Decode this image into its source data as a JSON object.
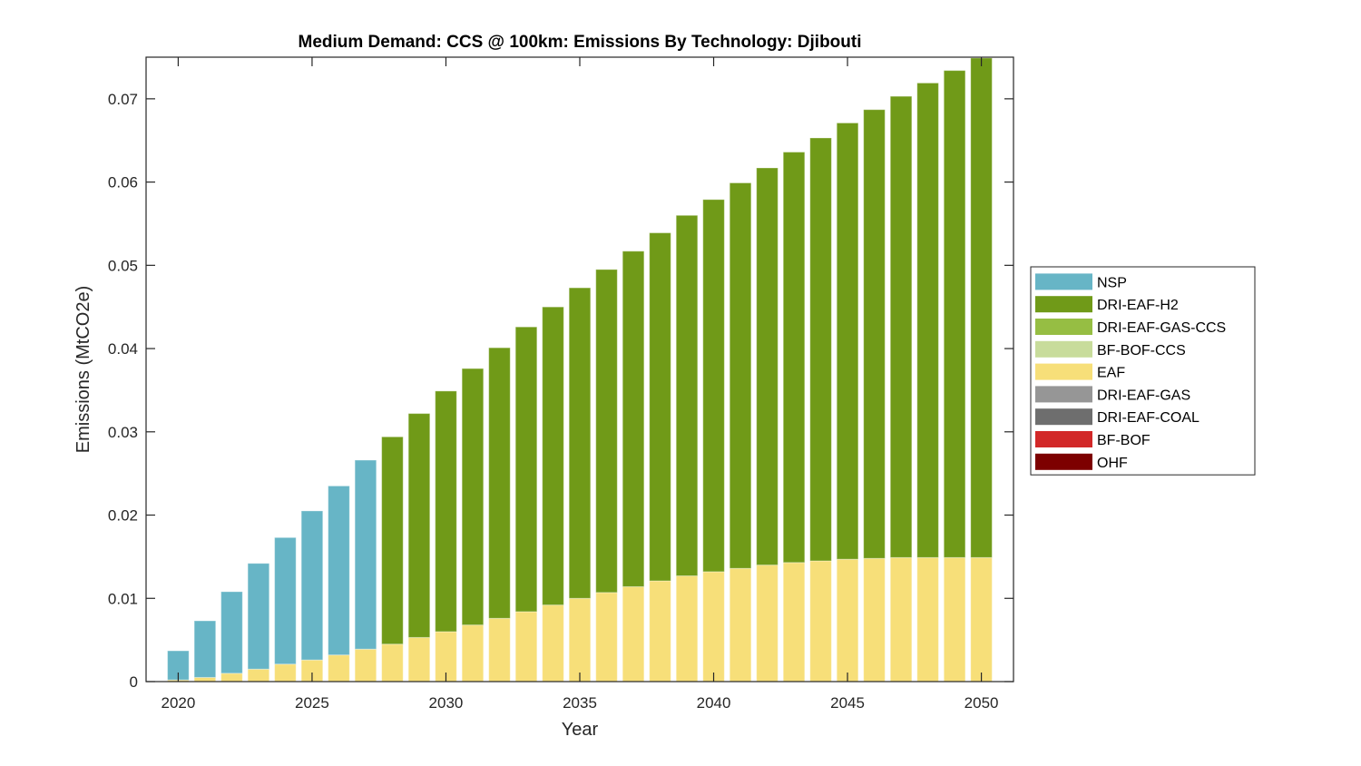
{
  "chart_data": {
    "type": "bar",
    "stacked": true,
    "title": "Medium Demand: CCS @ 100km: Emissions By Technology: Djibouti",
    "xlabel": "Year",
    "ylabel": "Emissions (MtCO2e)",
    "xlim": [
      2018.8,
      2051.2
    ],
    "ylim": [
      0,
      0.075
    ],
    "xticks": [
      2020,
      2025,
      2030,
      2035,
      2040,
      2045,
      2050
    ],
    "xtick_labels": [
      "2020",
      "2025",
      "2030",
      "2035",
      "2040",
      "2045",
      "2050"
    ],
    "yticks": [
      0,
      0.01,
      0.02,
      0.03,
      0.04,
      0.05,
      0.06,
      0.07
    ],
    "ytick_labels": [
      "0",
      "0.01",
      "0.02",
      "0.03",
      "0.04",
      "0.05",
      "0.06",
      "0.07"
    ],
    "grid": false,
    "legend_position": "right-outside",
    "categories": [
      2020,
      2021,
      2022,
      2023,
      2024,
      2025,
      2026,
      2027,
      2028,
      2029,
      2030,
      2031,
      2032,
      2033,
      2034,
      2035,
      2036,
      2037,
      2038,
      2039,
      2040,
      2041,
      2042,
      2043,
      2044,
      2045,
      2046,
      2047,
      2048,
      2049,
      2050
    ],
    "stack_order": [
      "OHF",
      "BF-BOF",
      "DRI-EAF-COAL",
      "DRI-EAF-GAS",
      "EAF",
      "BF-BOF-CCS",
      "DRI-EAF-GAS-CCS",
      "DRI-EAF-H2",
      "NSP"
    ],
    "series": [
      {
        "name": "NSP",
        "color": "#67B5C6",
        "values": [
          0.0035,
          0.0068,
          0.0098,
          0.0127,
          0.0152,
          0.0179,
          0.0203,
          0.0227,
          0,
          0,
          0,
          0,
          0,
          0,
          0,
          0,
          0,
          0,
          0,
          0,
          0,
          0,
          0,
          0,
          0,
          0,
          0,
          0,
          0,
          0,
          0
        ]
      },
      {
        "name": "DRI-EAF-H2",
        "color": "#709A18",
        "values": [
          0,
          0,
          0,
          0,
          0,
          0,
          0,
          0,
          0.0249,
          0.0269,
          0.0289,
          0.0308,
          0.0325,
          0.0342,
          0.0358,
          0.0373,
          0.0388,
          0.0403,
          0.0418,
          0.0433,
          0.0447,
          0.0463,
          0.0477,
          0.0493,
          0.0508,
          0.0524,
          0.0539,
          0.0554,
          0.057,
          0.0585,
          0.06
        ]
      },
      {
        "name": "DRI-EAF-GAS-CCS",
        "color": "#96BE43",
        "values": [
          0,
          0,
          0,
          0,
          0,
          0,
          0,
          0,
          0,
          0,
          0,
          0,
          0,
          0,
          0,
          0,
          0,
          0,
          0,
          0,
          0,
          0,
          0,
          0,
          0,
          0,
          0,
          0,
          0,
          0,
          0
        ]
      },
      {
        "name": "BF-BOF-CCS",
        "color": "#C8DC9B",
        "values": [
          0,
          0,
          0,
          0,
          0,
          0,
          0,
          0,
          0,
          0,
          0,
          0,
          0,
          0,
          0,
          0,
          0,
          0,
          0,
          0,
          0,
          0,
          0,
          0,
          0,
          0,
          0,
          0,
          0,
          0,
          0
        ]
      },
      {
        "name": "EAF",
        "color": "#F7DF79",
        "values": [
          0.0002,
          0.0005,
          0.001,
          0.0015,
          0.0021,
          0.0026,
          0.0032,
          0.0039,
          0.0045,
          0.0053,
          0.006,
          0.0068,
          0.0076,
          0.0084,
          0.0092,
          0.01,
          0.0107,
          0.0114,
          0.0121,
          0.0127,
          0.0132,
          0.0136,
          0.014,
          0.0143,
          0.0145,
          0.0147,
          0.0148,
          0.0149,
          0.0149,
          0.0149,
          0.0149
        ]
      },
      {
        "name": "DRI-EAF-GAS",
        "color": "#969696",
        "values": [
          0,
          0,
          0,
          0,
          0,
          0,
          0,
          0,
          0,
          0,
          0,
          0,
          0,
          0,
          0,
          0,
          0,
          0,
          0,
          0,
          0,
          0,
          0,
          0,
          0,
          0,
          0,
          0,
          0,
          0,
          0
        ]
      },
      {
        "name": "DRI-EAF-COAL",
        "color": "#6E6E6E",
        "values": [
          0,
          0,
          0,
          0,
          0,
          0,
          0,
          0,
          0,
          0,
          0,
          0,
          0,
          0,
          0,
          0,
          0,
          0,
          0,
          0,
          0,
          0,
          0,
          0,
          0,
          0,
          0,
          0,
          0,
          0,
          0
        ]
      },
      {
        "name": "BF-BOF",
        "color": "#D22828",
        "values": [
          0,
          0,
          0,
          0,
          0,
          0,
          0,
          0,
          0,
          0,
          0,
          0,
          0,
          0,
          0,
          0,
          0,
          0,
          0,
          0,
          0,
          0,
          0,
          0,
          0,
          0,
          0,
          0,
          0,
          0,
          0
        ]
      },
      {
        "name": "OHF",
        "color": "#7D0000",
        "values": [
          0,
          0,
          0,
          0,
          0,
          0,
          0,
          0,
          0,
          0,
          0,
          0,
          0,
          0,
          0,
          0,
          0,
          0,
          0,
          0,
          0,
          0,
          0,
          0,
          0,
          0,
          0,
          0,
          0,
          0,
          0
        ]
      }
    ],
    "legend": [
      "NSP",
      "DRI-EAF-H2",
      "DRI-EAF-GAS-CCS",
      "BF-BOF-CCS",
      "EAF",
      "DRI-EAF-GAS",
      "DRI-EAF-COAL",
      "BF-BOF",
      "OHF"
    ]
  }
}
